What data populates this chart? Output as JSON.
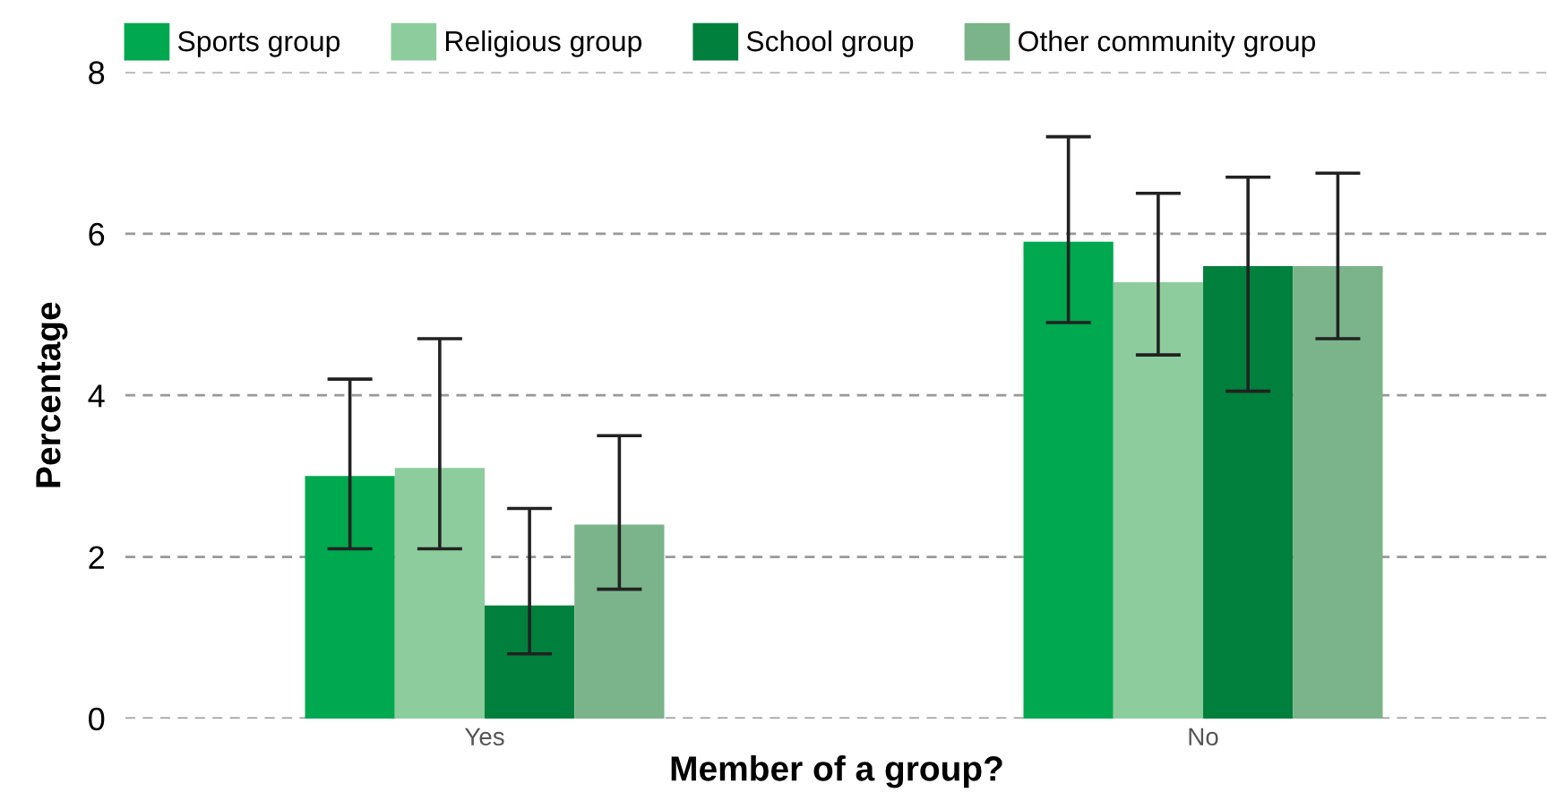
{
  "chart_data": {
    "type": "bar",
    "xlabel": "Member of a group?",
    "ylabel": "Percentage",
    "categories": [
      "Yes",
      "No"
    ],
    "series": [
      {
        "name": "Sports group",
        "color": "#00a84f",
        "values": [
          3.0,
          5.9
        ],
        "errors": [
          [
            2.1,
            4.2
          ],
          [
            4.9,
            7.2
          ]
        ]
      },
      {
        "name": "Religious group",
        "color": "#8dcd9d",
        "values": [
          3.1,
          5.4
        ],
        "errors": [
          [
            2.1,
            4.7
          ],
          [
            4.5,
            6.5
          ]
        ]
      },
      {
        "name": "School group",
        "color": "#00803c",
        "values": [
          1.4,
          5.6
        ],
        "errors": [
          [
            0.8,
            2.6
          ],
          [
            4.05,
            6.7
          ]
        ]
      },
      {
        "name": "Other community group",
        "color": "#7bb48a",
        "values": [
          2.4,
          5.6
        ],
        "errors": [
          [
            1.6,
            3.5
          ],
          [
            4.7,
            6.75
          ]
        ]
      }
    ],
    "ylim": [
      0,
      8
    ],
    "yticks": [
      0,
      2,
      4,
      6,
      8
    ],
    "grid": "y",
    "legend": "top left"
  }
}
